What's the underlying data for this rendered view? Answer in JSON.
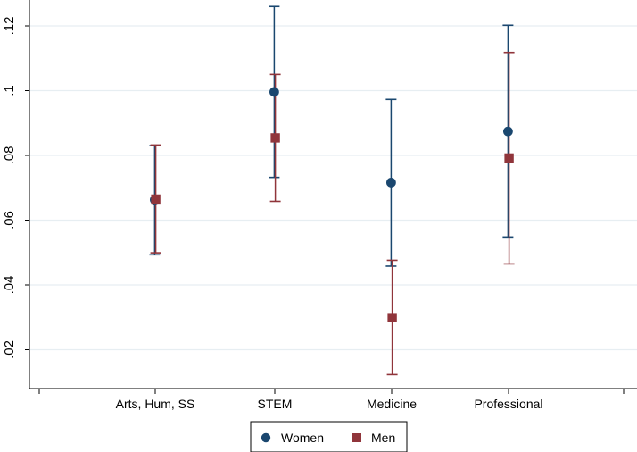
{
  "chart_data": {
    "type": "scatter",
    "subtype": "point-with-confidence-intervals",
    "title": "",
    "xlabel": "",
    "ylabel": "",
    "categories": [
      "Arts, Hum, SS",
      "STEM",
      "Medicine",
      "Professional"
    ],
    "ylim": [
      0.008,
      0.128
    ],
    "yticks": [
      0.02,
      0.04,
      0.06,
      0.08,
      0.1,
      0.12
    ],
    "ytick_labels": [
      ".02",
      ".04",
      ".06",
      ".08",
      ".1",
      ".12"
    ],
    "grid": true,
    "legend_position": "bottom",
    "series": [
      {
        "name": "Women",
        "marker": "circle",
        "color": "#1a476f",
        "values": [
          0.0663,
          0.0996,
          0.0716,
          0.0874
        ],
        "lower": [
          0.0493,
          0.0732,
          0.0458,
          0.0548
        ],
        "upper": [
          0.083,
          0.126,
          0.0973,
          0.1202
        ]
      },
      {
        "name": "Men",
        "marker": "square",
        "color": "#90353b",
        "values": [
          0.0665,
          0.0854,
          0.0299,
          0.0792
        ],
        "lower": [
          0.0499,
          0.0658,
          0.0123,
          0.0465
        ],
        "upper": [
          0.0832,
          0.105,
          0.0476,
          0.1118
        ]
      }
    ]
  }
}
